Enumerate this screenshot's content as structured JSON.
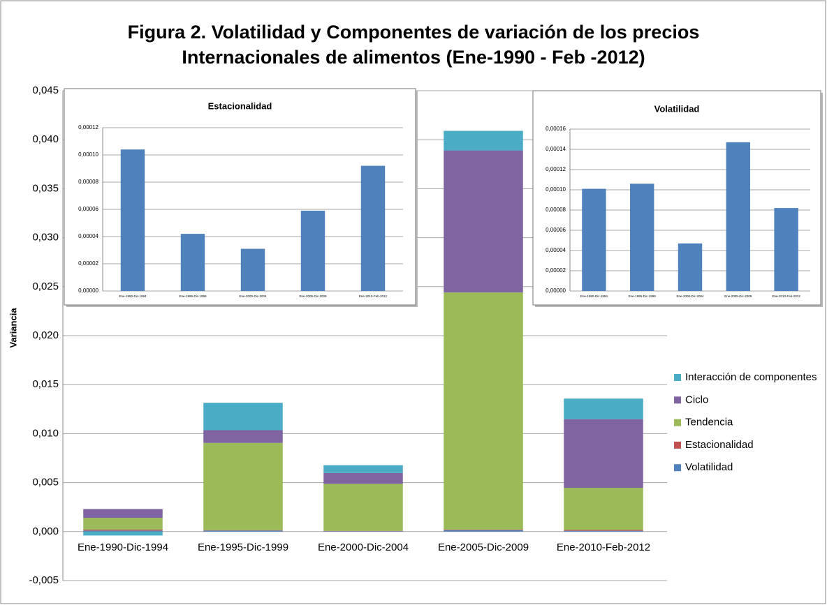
{
  "chart_data": [
    {
      "type": "stacked_bar",
      "title": [
        "Figura 2. Volatilidad y Componentes de variación de los precios",
        "Internacionales de alimentos (Ene-1990 - Feb -2012)"
      ],
      "y_label": "Variancia",
      "categories": [
        "Ene-1990-Dic-1994",
        "Ene-1995-Dic-1999",
        "Ene-2000-Dic-2004",
        "Ene-2005-Dic-2009",
        "Ene-2010-Feb-2012"
      ],
      "series": [
        {
          "name": "Volatilidad",
          "color": "#4f81bd",
          "values": [
            0.000101,
            0.000106,
            4.7e-05,
            0.000147,
            8.2e-05
          ]
        },
        {
          "name": "Estacionalidad",
          "color": "#c0504d",
          "values": [
            0.000104,
            4.2e-05,
            3.1e-05,
            5.9e-05,
            9.2e-05
          ]
        },
        {
          "name": "Tendencia",
          "color": "#9bbb59",
          "values": [
            0.0012,
            0.0089,
            0.0048,
            0.0242,
            0.0043
          ]
        },
        {
          "name": "Ciclo",
          "color": "#8064a2",
          "values": [
            0.0009,
            0.0013,
            0.0011,
            0.0145,
            0.007
          ]
        },
        {
          "name": "Interacción de componentes",
          "color": "#4bacc6",
          "values": [
            -0.0004,
            0.0028,
            0.0008,
            0.002,
            0.0021
          ]
        }
      ],
      "ylim": [
        -0.005,
        0.045
      ],
      "yticks": [
        {
          "value": -0.005,
          "label": "-0,005"
        },
        {
          "value": 0,
          "label": "0,000"
        },
        {
          "value": 0.005,
          "label": "0,005"
        },
        {
          "value": 0.01,
          "label": "0,010"
        },
        {
          "value": 0.015,
          "label": "0,015"
        },
        {
          "value": 0.02,
          "label": "0,020"
        },
        {
          "value": 0.025,
          "label": "0,025"
        },
        {
          "value": 0.03,
          "label": "0,030"
        },
        {
          "value": 0.035,
          "label": "0,035"
        },
        {
          "value": 0.04,
          "label": "0,040"
        },
        {
          "value": 0.045,
          "label": "0,045"
        }
      ],
      "grid": true,
      "legend": "right"
    },
    {
      "type": "bar",
      "title": "Estacionalidad",
      "categories": [
        "Ene-1990-Dic-1994",
        "Ene-1995-Dic-1999",
        "Ene-2000-Dic-2004",
        "Ene-2005-Dic-2009",
        "Ene-2010-Feb-2012"
      ],
      "values": [
        0.000104,
        4.2e-05,
        3.1e-05,
        5.9e-05,
        9.2e-05
      ],
      "color": "#4f81bd",
      "ylim": [
        0,
        0.00012
      ],
      "yticks": [
        {
          "value": 0,
          "label": "0,00000"
        },
        {
          "value": 2e-05,
          "label": "0,00002"
        },
        {
          "value": 4e-05,
          "label": "0,00004"
        },
        {
          "value": 6e-05,
          "label": "0,00006"
        },
        {
          "value": 8e-05,
          "label": "0,00008"
        },
        {
          "value": 0.0001,
          "label": "0,00010"
        },
        {
          "value": 0.00012,
          "label": "0,00012"
        }
      ],
      "grid": true
    },
    {
      "type": "bar",
      "title": "Volatilidad",
      "categories": [
        "Ene-1990-Dic-1994",
        "Ene-1995-Dic-1999",
        "Ene-2000-Dic-2004",
        "Ene-2005-Dic-2009",
        "Ene-2010-Feb-2012"
      ],
      "values": [
        0.000101,
        0.000106,
        4.7e-05,
        0.000147,
        8.2e-05
      ],
      "color": "#4f81bd",
      "ylim": [
        0,
        0.00016
      ],
      "yticks": [
        {
          "value": 0,
          "label": "0,00000"
        },
        {
          "value": 2e-05,
          "label": "0,00002"
        },
        {
          "value": 4e-05,
          "label": "0,00004"
        },
        {
          "value": 6e-05,
          "label": "0,00006"
        },
        {
          "value": 8e-05,
          "label": "0,00008"
        },
        {
          "value": 0.0001,
          "label": "0,00010"
        },
        {
          "value": 0.00012,
          "label": "0,00012"
        },
        {
          "value": 0.00014,
          "label": "0,00014"
        },
        {
          "value": 0.00016,
          "label": "0,00016"
        }
      ],
      "grid": true
    }
  ]
}
